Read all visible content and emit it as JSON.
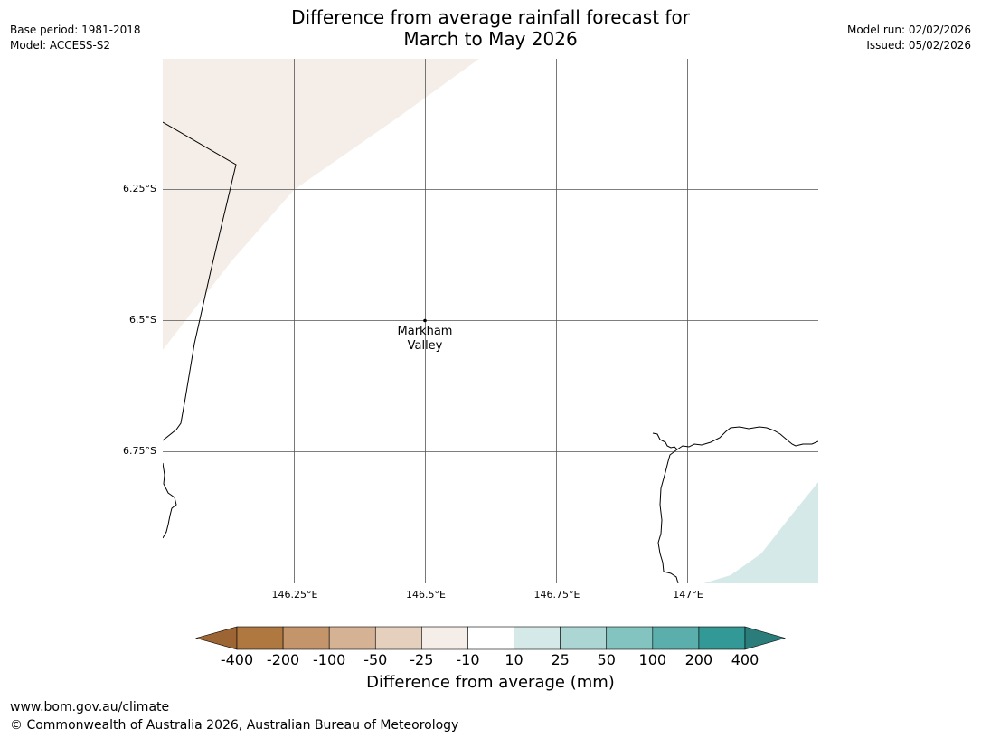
{
  "title": {
    "line1": "Difference from average rainfall forecast for",
    "line2": "March to May 2026"
  },
  "meta_left": {
    "base_period": "Base period: 1981-2018",
    "model": "Model: ACCESS-S2"
  },
  "meta_right": {
    "model_run": "Model run: 02/02/2026",
    "issued": "Issued: 05/02/2026"
  },
  "map": {
    "lat_labels": [
      "6.25°S",
      "6.5°S",
      "6.75°S"
    ],
    "lon_labels": [
      "146.25°E",
      "146.5°E",
      "146.75°E",
      "147°E"
    ],
    "place": {
      "name_line1": "Markham",
      "name_line2": "Valley"
    },
    "colors": {
      "dry_light": "#f5eee8",
      "wet_light": "#d5e9e8",
      "coast": "#000000",
      "grid": "#555555"
    }
  },
  "colorbar": {
    "title": "Difference from average (mm)",
    "tick_labels": [
      "-400",
      "-200",
      "-100",
      "-50",
      "-25",
      "-10",
      "10",
      "25",
      "50",
      "100",
      "200",
      "400"
    ],
    "colors": [
      "#9e6534",
      "#b07841",
      "#c4956b",
      "#d4b293",
      "#e5d0bd",
      "#f5eee8",
      "#ffffff",
      "#d5e9e8",
      "#acd6d4",
      "#83c3c0",
      "#5aaeac",
      "#329996",
      "#2a7d7a"
    ]
  },
  "footer": {
    "url": "www.bom.gov.au/climate",
    "copyright": "© Commonwealth of Australia 2026, Australian Bureau of Meteorology"
  }
}
